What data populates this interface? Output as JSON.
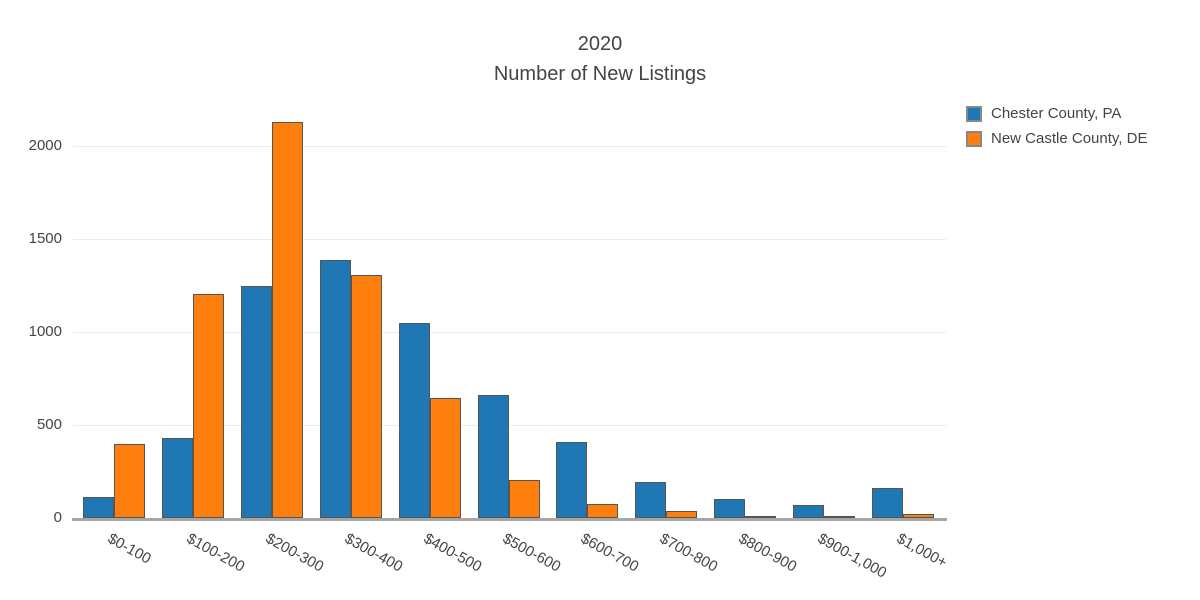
{
  "title": {
    "line1": "2020",
    "line2": "Number of New Listings"
  },
  "legend": {
    "items": [
      {
        "label": "Chester County, PA",
        "color": "#1f77b4"
      },
      {
        "label": "New Castle County, DE",
        "color": "#ff7f0e"
      }
    ]
  },
  "colors": {
    "background": "#ffffff",
    "text": "#444444",
    "gridline": "#ececec",
    "axis_line": "#a6a6a6",
    "bar_border": "#555555",
    "series_blue": "#1f77b4",
    "series_orange": "#ff7f0e"
  },
  "chart_data": {
    "type": "bar",
    "title": "2020 — Number of New Listings",
    "categories": [
      "$0-100",
      "$100-200",
      "$200-300",
      "$300-400",
      "$400-500",
      "$500-600",
      "$600-700",
      "$700-800",
      "$800-900",
      "$900-1,000",
      "$1,000+"
    ],
    "series": [
      {
        "name": "Chester County, PA",
        "color": "#1f77b4",
        "values": [
          115,
          430,
          1250,
          1390,
          1050,
          665,
          410,
          195,
          100,
          70,
          160
        ]
      },
      {
        "name": "New Castle County, DE",
        "color": "#ff7f0e",
        "values": [
          400,
          1205,
          2130,
          1310,
          645,
          205,
          75,
          40,
          10,
          8,
          20
        ]
      }
    ],
    "xlabel": "",
    "ylabel": "",
    "yticks": [
      0,
      500,
      1000,
      1500,
      2000
    ],
    "ylim": [
      0,
      2250
    ],
    "grid": true,
    "legend_position": "top-right"
  }
}
